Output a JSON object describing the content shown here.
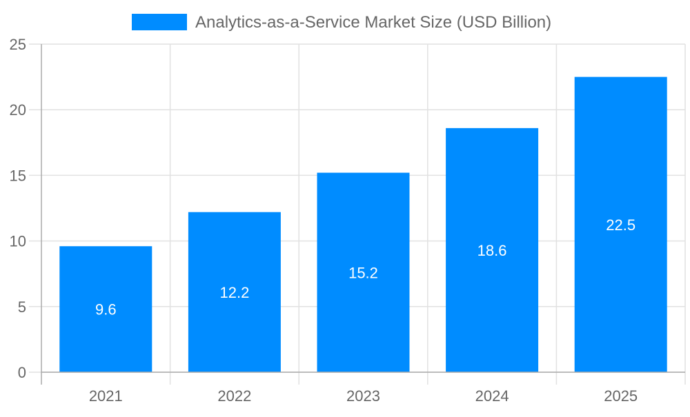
{
  "chart_data": {
    "type": "bar",
    "categories": [
      "2021",
      "2022",
      "2023",
      "2024",
      "2025"
    ],
    "series": [
      {
        "name": "Analytics-as-a-Service Market Size (USD Billion)",
        "values": [
          9.6,
          12.2,
          15.2,
          18.6,
          22.5
        ],
        "color": "#008cff"
      }
    ],
    "ylim": [
      0,
      25
    ],
    "yticks": [
      0,
      5,
      10,
      15,
      20,
      25
    ],
    "grid": true,
    "legend": "top-center",
    "data_labels": true
  }
}
